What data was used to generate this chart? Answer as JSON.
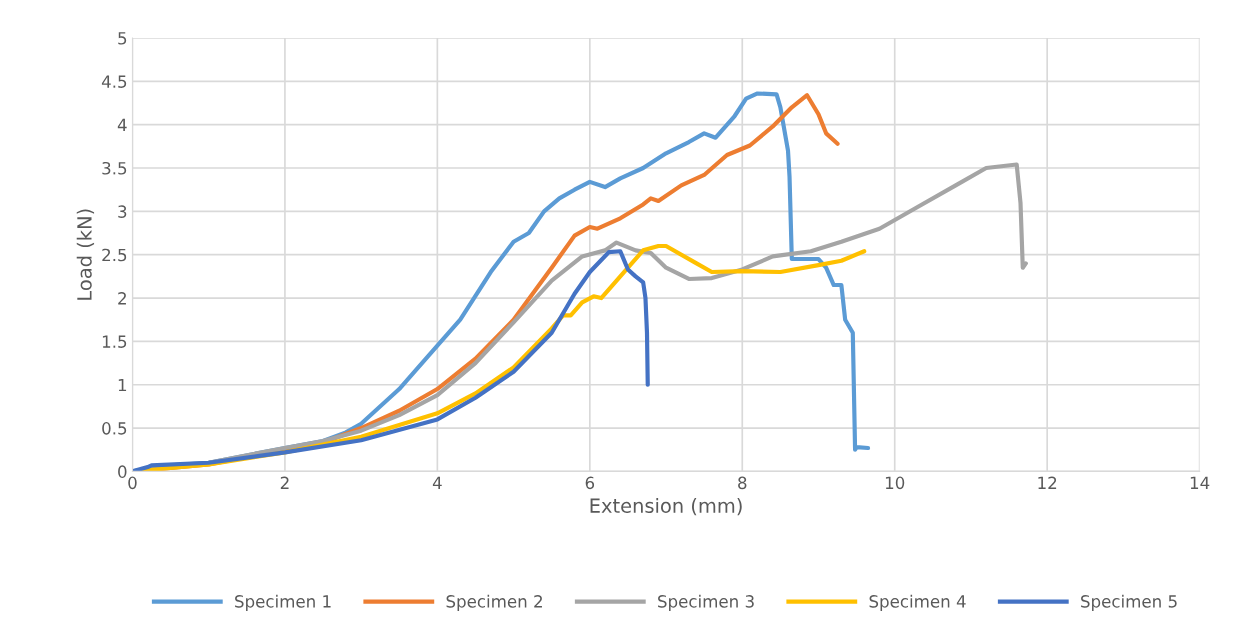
{
  "chart_data": {
    "type": "line",
    "xlabel": "Extension (mm)",
    "ylabel": "Load (kN)",
    "xlim": [
      0,
      14
    ],
    "xticks": [
      0,
      2,
      4,
      6,
      8,
      10,
      12,
      14
    ],
    "ylim": [
      0,
      5
    ],
    "yticks": [
      0,
      0.5,
      1,
      1.5,
      2,
      2.5,
      3,
      3.5,
      4,
      4.5,
      5
    ],
    "grid": true,
    "legend": "bottom",
    "marker": "none",
    "line_style": "solid",
    "series": [
      {
        "name": "Specimen 1",
        "color": "#5b9bd5",
        "x": [
          0,
          0.5,
          1,
          2,
          2.5,
          2.8,
          3,
          3.5,
          3.6,
          4,
          4.3,
          4.7,
          5,
          5.2,
          5.4,
          5.6,
          5.8,
          6,
          6.2,
          6.4,
          6.7,
          7,
          7.3,
          7.5,
          7.65,
          7.9,
          8.05,
          8.2,
          8.45,
          8.5,
          8.6,
          8.62,
          8.65,
          8.8,
          9.0,
          9.1,
          9.2,
          9.3,
          9.35,
          9.45,
          9.48,
          9.5,
          9.65
        ],
        "values": [
          0,
          0.07,
          0.1,
          0.27,
          0.35,
          0.45,
          0.55,
          0.95,
          1.05,
          1.45,
          1.75,
          2.3,
          2.65,
          2.75,
          3.0,
          3.15,
          3.25,
          3.34,
          3.28,
          3.38,
          3.5,
          3.67,
          3.8,
          3.9,
          3.85,
          4.1,
          4.3,
          4.36,
          4.35,
          4.2,
          3.7,
          3.4,
          2.45,
          2.45,
          2.45,
          2.35,
          2.15,
          2.15,
          1.75,
          1.6,
          0.25,
          0.28,
          0.27
        ]
      },
      {
        "name": "Specimen 2",
        "color": "#ed7d31",
        "x": [
          0,
          1,
          2,
          2.5,
          3,
          3.5,
          4,
          4.5,
          5,
          5.5,
          5.8,
          6.0,
          6.1,
          6.4,
          6.7,
          6.8,
          6.9,
          7.2,
          7.5,
          7.8,
          8.1,
          8.4,
          8.65,
          8.85,
          9.0,
          9.1,
          9.2,
          9.25
        ],
        "values": [
          0,
          0.08,
          0.25,
          0.33,
          0.5,
          0.7,
          0.95,
          1.3,
          1.75,
          2.35,
          2.72,
          2.82,
          2.8,
          2.92,
          3.08,
          3.15,
          3.12,
          3.3,
          3.42,
          3.65,
          3.76,
          3.98,
          4.2,
          4.34,
          4.12,
          3.9,
          3.82,
          3.78
        ]
      },
      {
        "name": "Specimen 3",
        "color": "#a5a5a5",
        "x": [
          0,
          1,
          2,
          2.5,
          3,
          3.5,
          4,
          4.5,
          5,
          5.5,
          5.9,
          6.2,
          6.35,
          6.6,
          6.8,
          7.0,
          7.3,
          7.6,
          8.0,
          8.4,
          8.9,
          9.3,
          9.8,
          10.3,
          10.8,
          11.2,
          11.6,
          11.65,
          11.68,
          11.72
        ],
        "values": [
          0,
          0.1,
          0.27,
          0.35,
          0.47,
          0.65,
          0.88,
          1.25,
          1.72,
          2.2,
          2.48,
          2.55,
          2.64,
          2.55,
          2.52,
          2.35,
          2.22,
          2.23,
          2.33,
          2.48,
          2.54,
          2.65,
          2.8,
          3.05,
          3.3,
          3.5,
          3.54,
          3.1,
          2.35,
          2.4
        ]
      },
      {
        "name": "Specimen 4",
        "color": "#ffc000",
        "x": [
          0,
          1,
          2,
          3,
          4,
          4.5,
          5,
          5.5,
          5.65,
          5.75,
          5.9,
          6.05,
          6.15,
          6.4,
          6.7,
          6.9,
          7.0,
          7.4,
          7.6,
          8.0,
          8.5,
          9.0,
          9.3,
          9.6
        ],
        "values": [
          0,
          0.08,
          0.22,
          0.4,
          0.67,
          0.9,
          1.2,
          1.65,
          1.8,
          1.8,
          1.95,
          2.02,
          2.0,
          2.25,
          2.55,
          2.6,
          2.6,
          2.4,
          2.3,
          2.31,
          2.3,
          2.38,
          2.43,
          2.54
        ]
      },
      {
        "name": "Specimen 5",
        "color": "#4472c4",
        "x": [
          0,
          0.2,
          0.25,
          1,
          2,
          3,
          4,
          4.5,
          5,
          5.5,
          5.8,
          6.0,
          6.25,
          6.4,
          6.5,
          6.6,
          6.7,
          6.73,
          6.75,
          6.76
        ],
        "values": [
          0,
          0.05,
          0.07,
          0.1,
          0.22,
          0.36,
          0.6,
          0.85,
          1.15,
          1.6,
          2.05,
          2.3,
          2.53,
          2.54,
          2.33,
          2.25,
          2.18,
          2.0,
          1.6,
          1.0
        ]
      }
    ]
  }
}
